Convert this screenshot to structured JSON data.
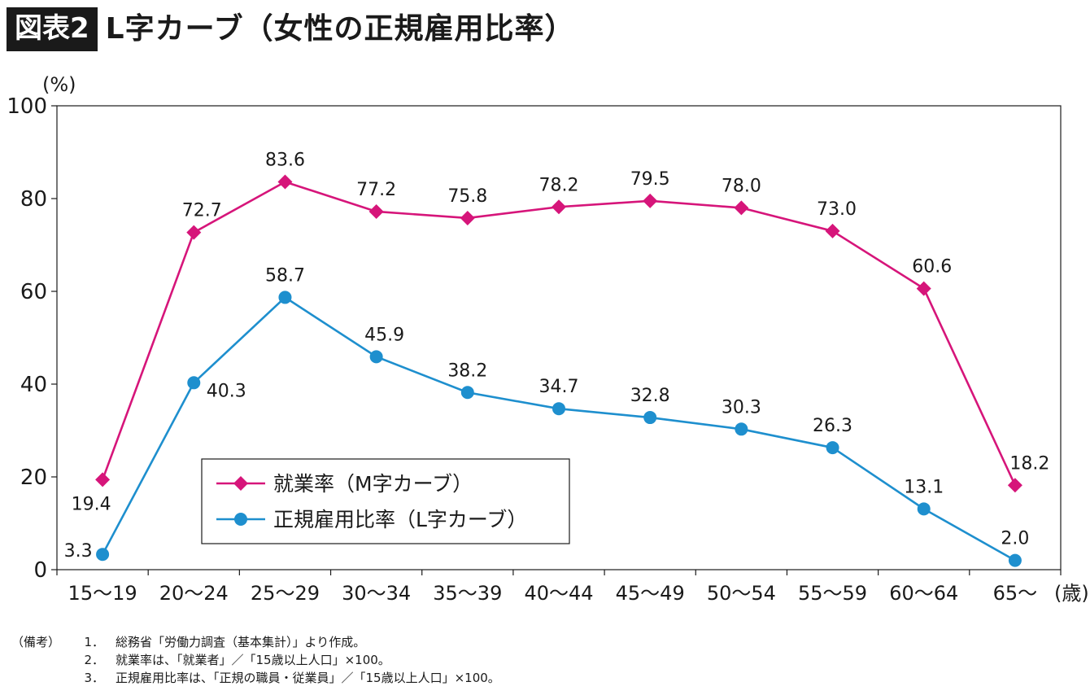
{
  "title": {
    "badge": "図表2",
    "text": "L字カーブ（女性の正規雇用比率）"
  },
  "chart_data": {
    "type": "line",
    "categories": [
      "15〜19",
      "20〜24",
      "25〜29",
      "30〜34",
      "35〜39",
      "40〜44",
      "45〜49",
      "50〜54",
      "55〜59",
      "60〜64",
      "65〜"
    ],
    "series": [
      {
        "name": "就業率（M字カーブ）",
        "color": "#d6157a",
        "marker": "diamond",
        "values": [
          19.4,
          72.7,
          83.6,
          77.2,
          75.8,
          78.2,
          79.5,
          78.0,
          73.0,
          60.6,
          18.2
        ]
      },
      {
        "name": "正規雇用比率（L字カーブ）",
        "color": "#1e8fce",
        "marker": "circle",
        "values": [
          3.3,
          40.3,
          58.7,
          45.9,
          38.2,
          34.7,
          32.8,
          30.3,
          26.3,
          13.1,
          2.0
        ]
      }
    ],
    "ylim": [
      0,
      100
    ],
    "yticks": [
      0,
      20,
      40,
      60,
      80,
      100
    ],
    "ylabel": "(%)",
    "xlabel": "(歳)",
    "legend_position": "bottom-left"
  },
  "notes": {
    "label": "（備考）",
    "items": [
      {
        "num": "1．",
        "text": "総務省「労働力調査（基本集計）」より作成。"
      },
      {
        "num": "2．",
        "text": "就業率は、「就業者」／「15歳以上人口」×100。"
      },
      {
        "num": "3．",
        "text": "正規雇用比率は、「正規の職員・従業員」／「15歳以上人口」×100。"
      }
    ]
  }
}
